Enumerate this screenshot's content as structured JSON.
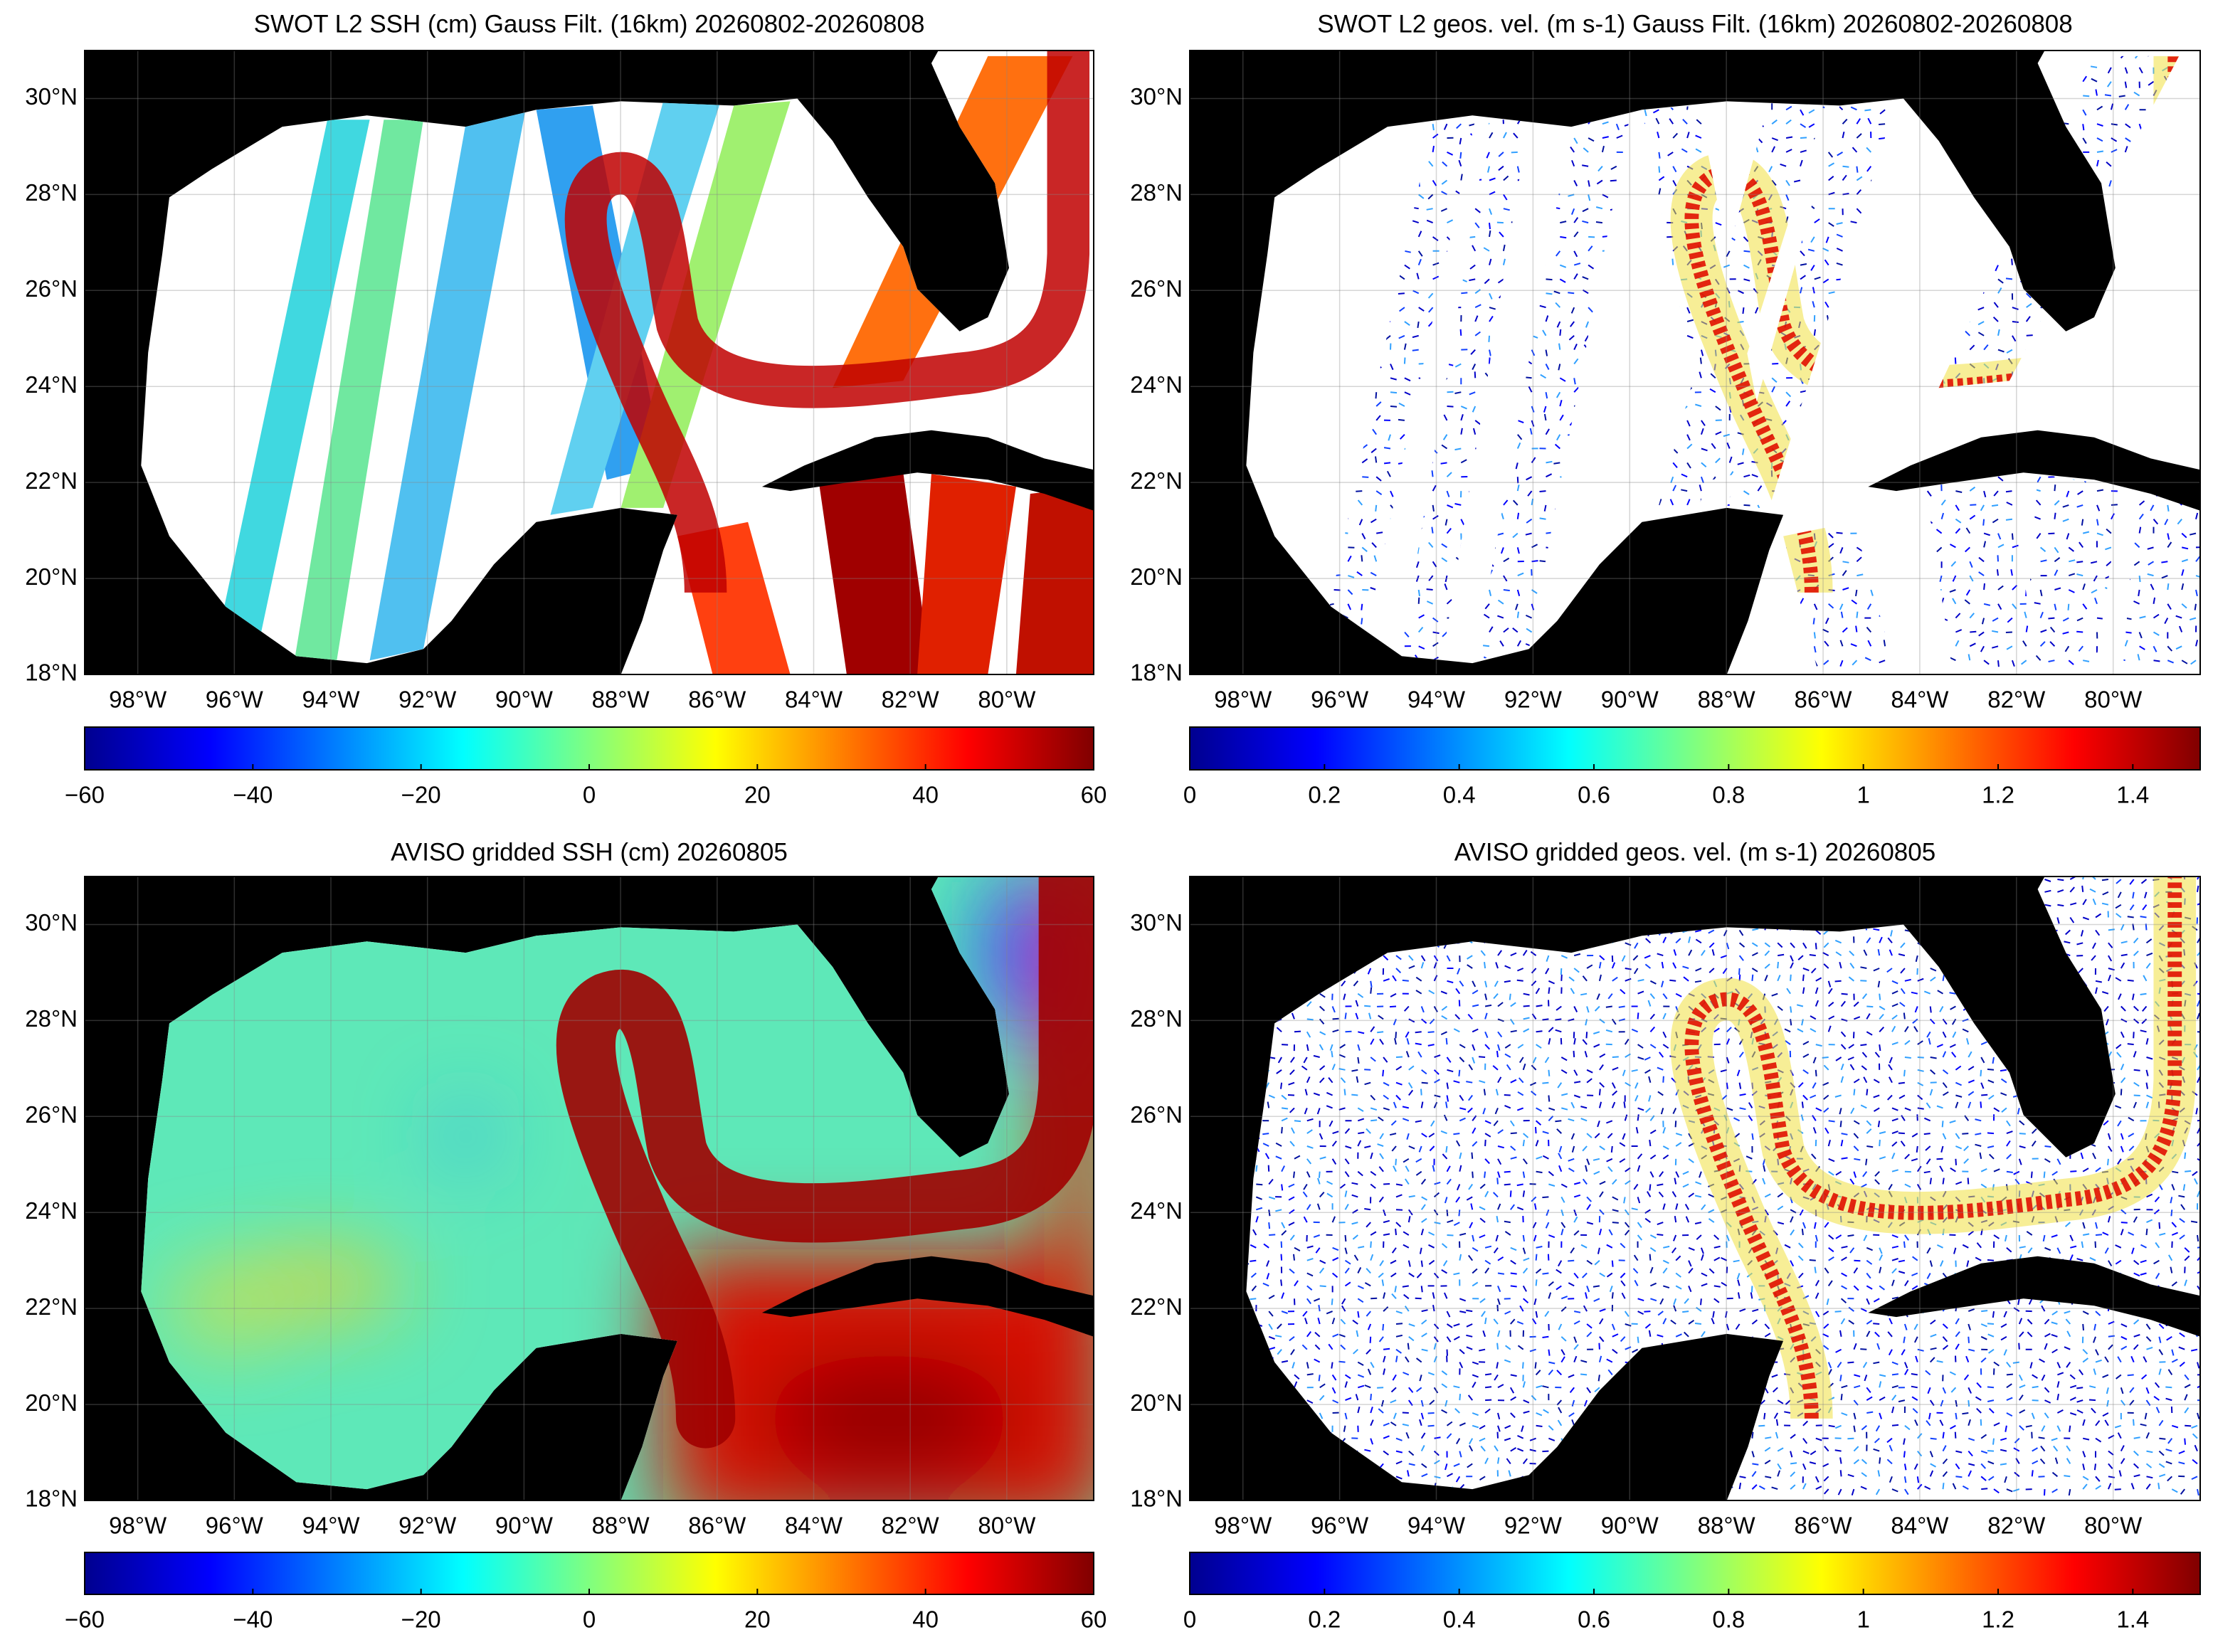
{
  "panels": [
    {
      "title": "SWOT L2 SSH (cm) Gauss Filt. (16km) 20260802-20260808",
      "xlim": [
        -99.1,
        -78.2
      ],
      "ylim": [
        18,
        31
      ],
      "xticks": [
        {
          "value": -98,
          "label": "98°W"
        },
        {
          "value": -96,
          "label": "96°W"
        },
        {
          "value": -94,
          "label": "94°W"
        },
        {
          "value": -92,
          "label": "92°W"
        },
        {
          "value": -90,
          "label": "90°W"
        },
        {
          "value": -88,
          "label": "88°W"
        },
        {
          "value": -86,
          "label": "86°W"
        },
        {
          "value": -84,
          "label": "84°W"
        },
        {
          "value": -82,
          "label": "82°W"
        },
        {
          "value": -80,
          "label": "80°W"
        }
      ],
      "yticks": [
        {
          "value": 18,
          "label": "18°N"
        },
        {
          "value": 20,
          "label": "20°N"
        },
        {
          "value": 22,
          "label": "22°N"
        },
        {
          "value": 24,
          "label": "24°N"
        },
        {
          "value": 26,
          "label": "26°N"
        },
        {
          "value": 28,
          "label": "28°N"
        },
        {
          "value": 30,
          "label": "30°N"
        }
      ],
      "colorbar": {
        "lim": [
          -60,
          60
        ],
        "ticks": [
          {
            "value": -60,
            "label": "−60"
          },
          {
            "value": -40,
            "label": "−40"
          },
          {
            "value": -20,
            "label": "−20"
          },
          0,
          20,
          40,
          60
        ]
      }
    },
    {
      "title": "SWOT L2 geos. vel. (m s-1) Gauss Filt. (16km) 20260802-20260808",
      "xlim": [
        -99.1,
        -78.2
      ],
      "ylim": [
        18,
        31
      ],
      "xticks": [
        {
          "value": -98,
          "label": "98°W"
        },
        {
          "value": -96,
          "label": "96°W"
        },
        {
          "value": -94,
          "label": "94°W"
        },
        {
          "value": -92,
          "label": "92°W"
        },
        {
          "value": -90,
          "label": "90°W"
        },
        {
          "value": -88,
          "label": "88°W"
        },
        {
          "value": -86,
          "label": "86°W"
        },
        {
          "value": -84,
          "label": "84°W"
        },
        {
          "value": -82,
          "label": "82°W"
        },
        {
          "value": -80,
          "label": "80°W"
        }
      ],
      "yticks": [
        {
          "value": 18,
          "label": "18°N"
        },
        {
          "value": 20,
          "label": "20°N"
        },
        {
          "value": 22,
          "label": "22°N"
        },
        {
          "value": 24,
          "label": "24°N"
        },
        {
          "value": 26,
          "label": "26°N"
        },
        {
          "value": 28,
          "label": "28°N"
        },
        {
          "value": 30,
          "label": "30°N"
        }
      ],
      "colorbar": {
        "lim": [
          0,
          1.5
        ],
        "ticks": [
          0,
          0.2,
          0.4,
          0.6,
          0.8,
          1,
          1.2,
          1.4
        ]
      }
    },
    {
      "title": "AVISO gridded SSH (cm) 20260805",
      "xlim": [
        -99.1,
        -78.2
      ],
      "ylim": [
        18,
        31
      ],
      "xticks": [
        {
          "value": -98,
          "label": "98°W"
        },
        {
          "value": -96,
          "label": "96°W"
        },
        {
          "value": -94,
          "label": "94°W"
        },
        {
          "value": -92,
          "label": "92°W"
        },
        {
          "value": -90,
          "label": "90°W"
        },
        {
          "value": -88,
          "label": "88°W"
        },
        {
          "value": -86,
          "label": "86°W"
        },
        {
          "value": -84,
          "label": "84°W"
        },
        {
          "value": -82,
          "label": "82°W"
        },
        {
          "value": -80,
          "label": "80°W"
        }
      ],
      "yticks": [
        {
          "value": 18,
          "label": "18°N"
        },
        {
          "value": 20,
          "label": "20°N"
        },
        {
          "value": 22,
          "label": "22°N"
        },
        {
          "value": 24,
          "label": "24°N"
        },
        {
          "value": 26,
          "label": "26°N"
        },
        {
          "value": 28,
          "label": "28°N"
        },
        {
          "value": 30,
          "label": "30°N"
        }
      ],
      "colorbar": {
        "lim": [
          -60,
          60
        ],
        "ticks": [
          {
            "value": -60,
            "label": "−60"
          },
          {
            "value": -40,
            "label": "−40"
          },
          {
            "value": -20,
            "label": "−20"
          },
          0,
          20,
          40,
          60
        ]
      }
    },
    {
      "title": "AVISO gridded geos. vel. (m s-1)  20260805",
      "xlim": [
        -99.1,
        -78.2
      ],
      "ylim": [
        18,
        31
      ],
      "xticks": [
        {
          "value": -98,
          "label": "98°W"
        },
        {
          "value": -96,
          "label": "96°W"
        },
        {
          "value": -94,
          "label": "94°W"
        },
        {
          "value": -92,
          "label": "92°W"
        },
        {
          "value": -90,
          "label": "90°W"
        },
        {
          "value": -88,
          "label": "88°W"
        },
        {
          "value": -86,
          "label": "86°W"
        },
        {
          "value": -84,
          "label": "84°W"
        },
        {
          "value": -82,
          "label": "82°W"
        },
        {
          "value": -80,
          "label": "80°W"
        }
      ],
      "yticks": [
        {
          "value": 18,
          "label": "18°N"
        },
        {
          "value": 20,
          "label": "20°N"
        },
        {
          "value": 22,
          "label": "22°N"
        },
        {
          "value": 24,
          "label": "24°N"
        },
        {
          "value": 26,
          "label": "26°N"
        },
        {
          "value": 28,
          "label": "28°N"
        },
        {
          "value": 30,
          "label": "30°N"
        }
      ],
      "colorbar": {
        "lim": [
          0,
          1.5
        ],
        "ticks": [
          0,
          0.2,
          0.4,
          0.6,
          0.8,
          1,
          1.2,
          1.4
        ]
      }
    }
  ]
}
